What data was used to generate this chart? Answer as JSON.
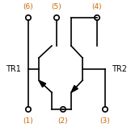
{
  "bg_color": "#ffffff",
  "line_color": "#000000",
  "label_color": "#cc6600",
  "tr1_label": "TR1",
  "tr2_label": "TR2",
  "pin_labels_top": [
    "(6)",
    "(5)",
    "(4)"
  ],
  "pin_labels_bot": [
    "(1)",
    "(2)",
    "(3)"
  ],
  "figsize": [
    1.62,
    1.58
  ],
  "dpi": 100
}
